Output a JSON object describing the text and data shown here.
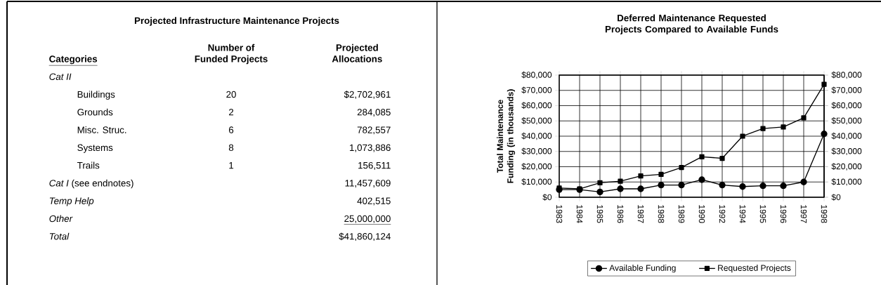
{
  "chart_data": [
    {
      "type": "other",
      "title": "Projected Infrastructure Maintenance Projects",
      "annotations": [
        "Categories",
        "Number of Funded Projects",
        "Projected Allocations",
        "Cat II",
        "Buildings",
        "20",
        "$2,702,961",
        "Grounds",
        "2",
        "284,085",
        "Misc. Struc.",
        "6",
        "782,557",
        "Systems",
        "8",
        "1,073,886",
        "Trails",
        "1",
        "156,511",
        "*Cat I* (see endnotes)",
        "11,457,609",
        "Temp Help",
        "402,515",
        "Other",
        "25,000,000",
        "Total",
        "$41,860,124"
      ]
    },
    {
      "type": "line",
      "title": "Deferred Maintenance Requested Projects Compared to Available Funds",
      "ylabel": "Total Maintenance Funding (in thousands)",
      "categories": [
        "1983",
        "1984",
        "1985",
        "1986",
        "1987",
        "1988",
        "1989",
        "1990",
        "1992",
        "1994",
        "1995",
        "1996",
        "1997",
        "1998"
      ],
      "series": [
        {
          "name": "Available Funding",
          "color": "#000000",
          "marker": "circle",
          "values": [
            5000,
            5000,
            3500,
            5500,
            5500,
            8000,
            8000,
            11500,
            8000,
            7000,
            7500,
            7500,
            10000,
            41500
          ]
        },
        {
          "name": "Requested Projects",
          "color": "#000000",
          "marker": "square",
          "values": [
            6000,
            5500,
            9500,
            10500,
            14000,
            15000,
            19500,
            26500,
            25500,
            40000,
            45000,
            46000,
            52000,
            74000
          ]
        }
      ],
      "ylim": [
        0,
        80000
      ],
      "yticks": [
        {
          "value": 0,
          "label": "$0"
        },
        {
          "value": 10000,
          "label": "$10,000"
        },
        {
          "value": 20000,
          "label": "$20,000"
        },
        {
          "value": 30000,
          "label": "$30,000"
        },
        {
          "value": 40000,
          "label": "$40,000"
        },
        {
          "value": 50000,
          "label": "$50,000"
        },
        {
          "value": 60000,
          "label": "$60,000"
        },
        {
          "value": 70000,
          "label": "$70,000"
        },
        {
          "value": 80000,
          "label": "$80,000"
        }
      ],
      "y2lim": [
        0,
        80000
      ],
      "y2ticks": [
        {
          "value": 0,
          "label": "$0"
        },
        {
          "value": 10000,
          "label": "$10,000"
        },
        {
          "value": 20000,
          "label": "$20,000"
        },
        {
          "value": 30000,
          "label": "$30,000"
        },
        {
          "value": 40000,
          "label": "$40,000"
        },
        {
          "value": 50000,
          "label": "$50,000"
        },
        {
          "value": 60000,
          "label": "$60,000"
        },
        {
          "value": 70000,
          "label": "$70,000"
        },
        {
          "value": 80000,
          "label": "$80,000"
        }
      ],
      "grid": true,
      "legend": "bottom"
    }
  ]
}
